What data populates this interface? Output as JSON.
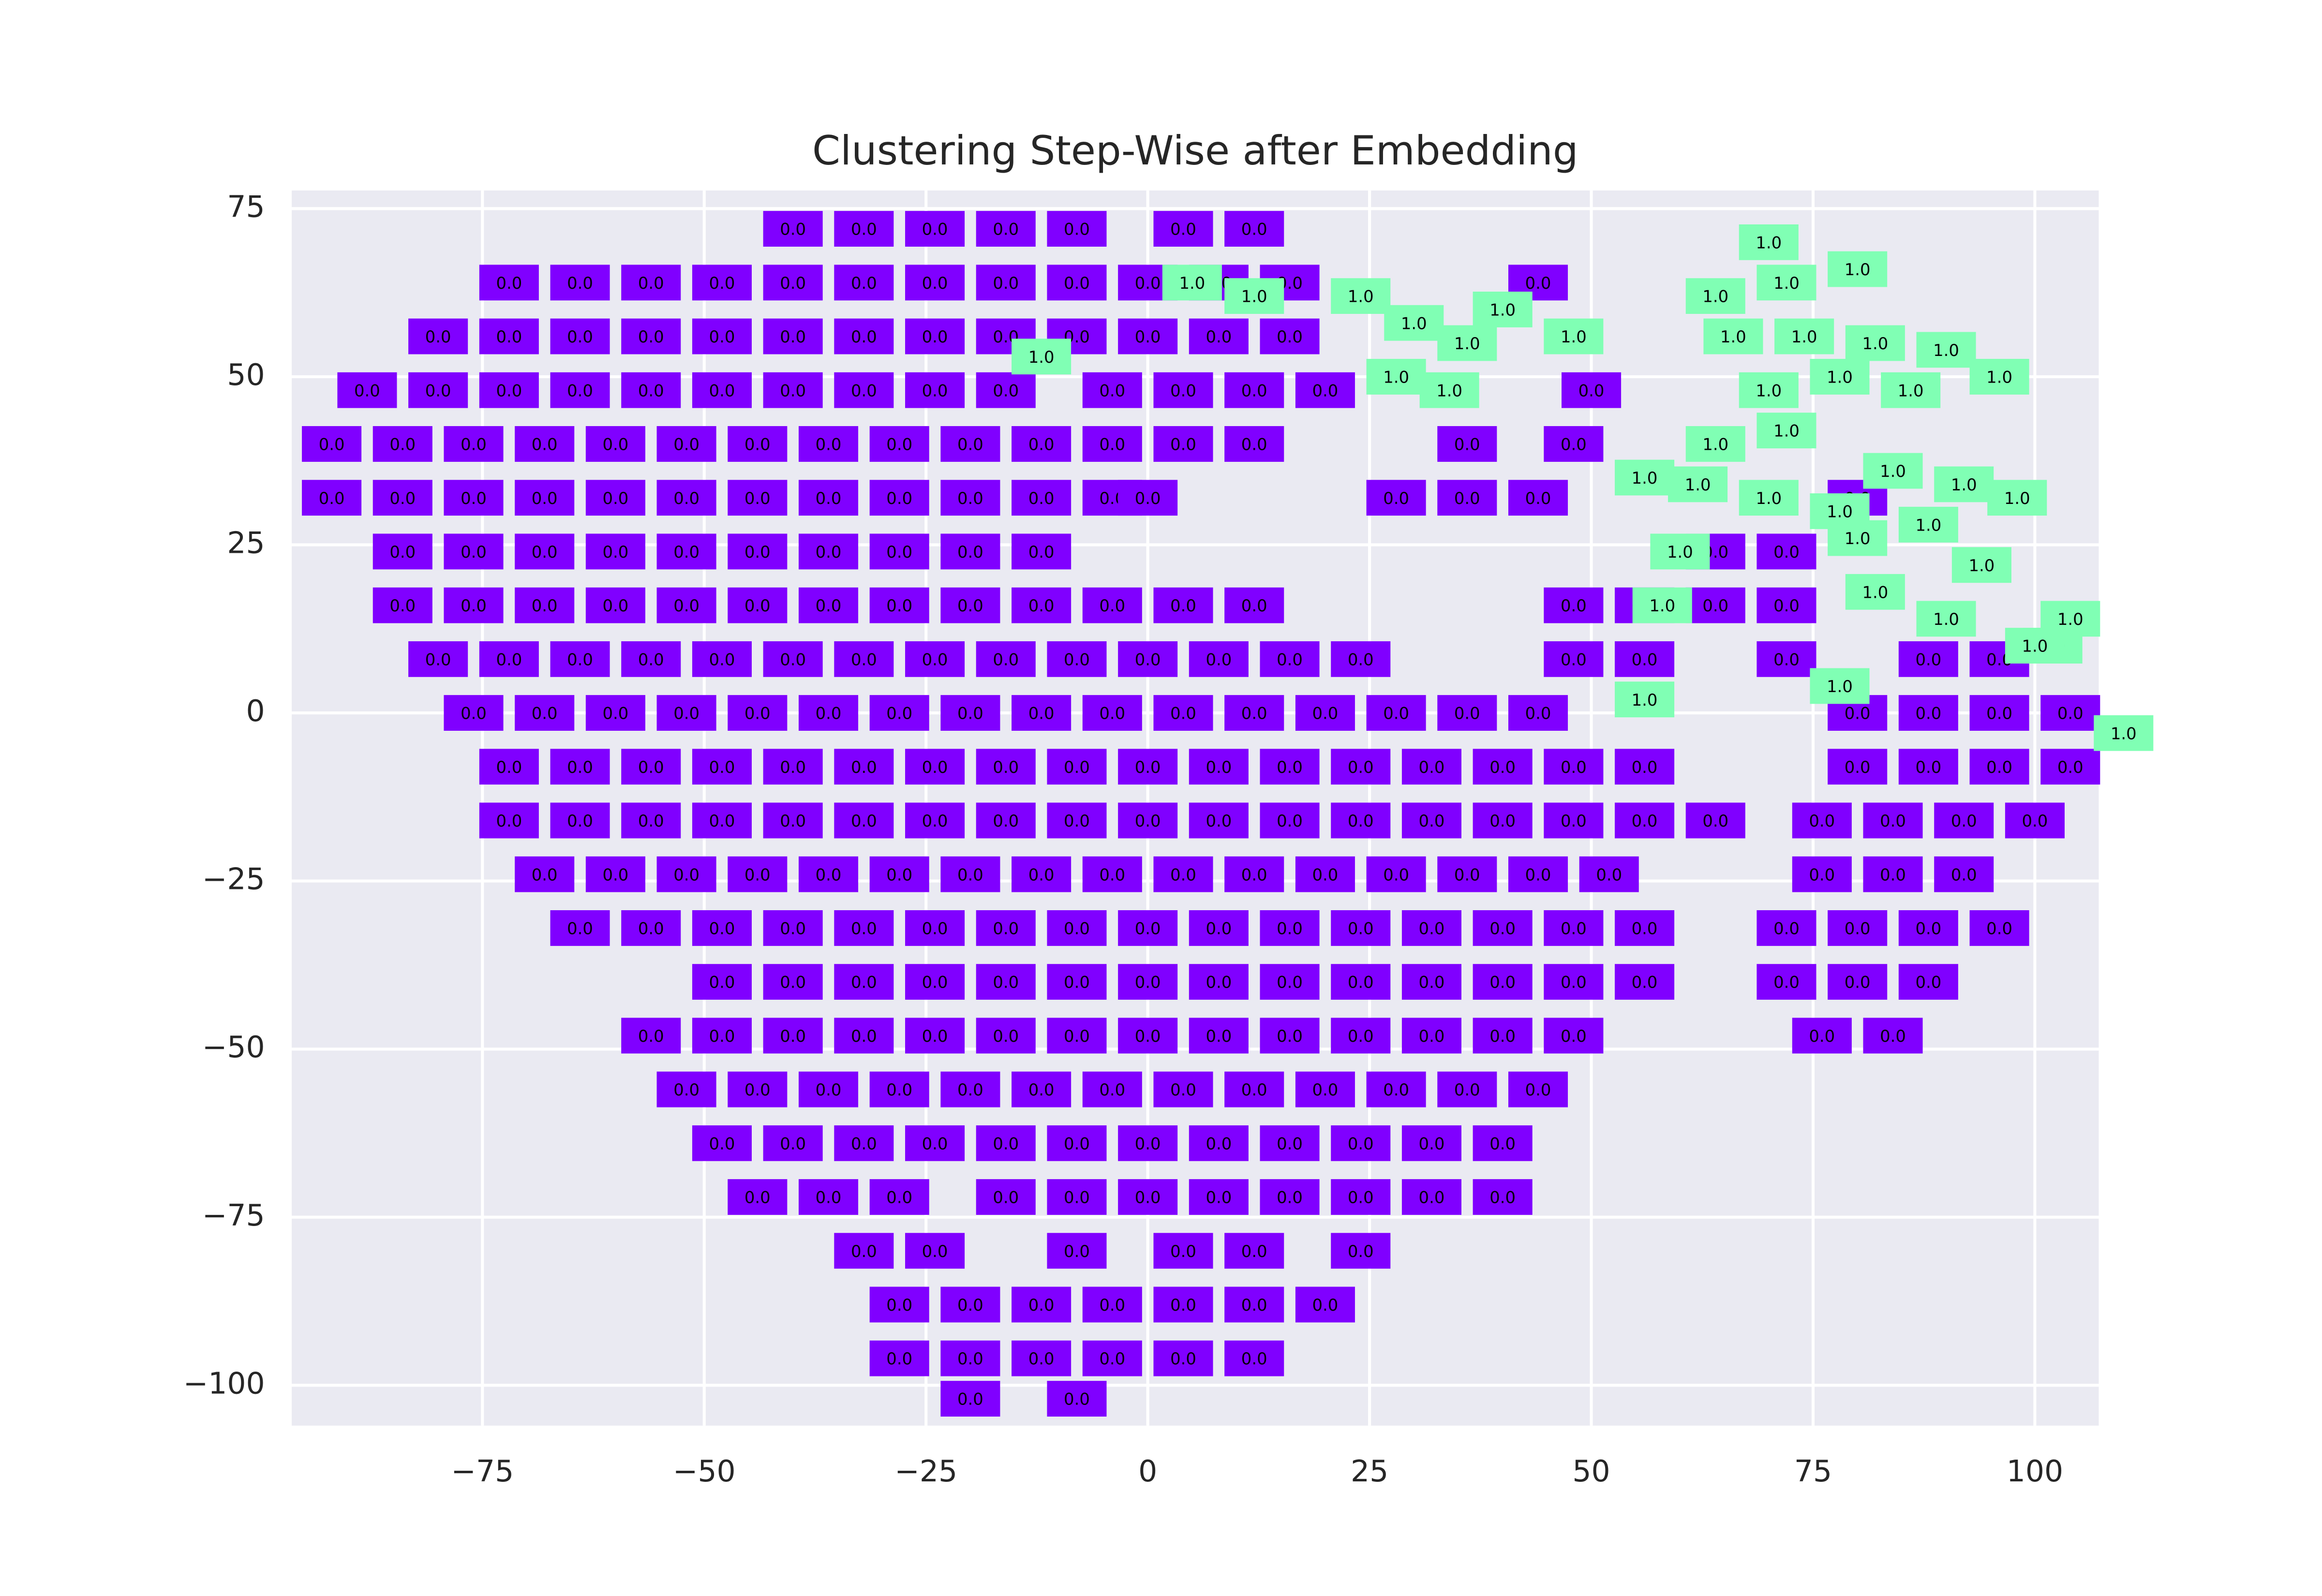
{
  "chart_data": {
    "type": "scatter",
    "title": "Clustering Step-Wise after Embedding",
    "xlim": [
      -96.5,
      107.2
    ],
    "ylim": [
      -106,
      77.7
    ],
    "xticks": [
      {
        "value": -75,
        "label": "−75"
      },
      {
        "value": -50,
        "label": "−50"
      },
      {
        "value": -25,
        "label": "−25"
      },
      0,
      25,
      50,
      75,
      100
    ],
    "yticks": [
      {
        "value": -100,
        "label": "−100"
      },
      {
        "value": -75,
        "label": "−75"
      },
      {
        "value": -50,
        "label": "−50"
      },
      {
        "value": -25,
        "label": "−25"
      },
      0,
      25,
      50,
      75
    ],
    "grid": true,
    "legend": false,
    "series": [
      {
        "name": "0.0",
        "color": "#8000ff",
        "x": [
          -40,
          -32,
          -24,
          -16,
          -8,
          4,
          12,
          -72,
          -64,
          -56,
          -48,
          -40,
          -32,
          -24,
          -16,
          -8,
          0,
          8,
          16,
          44,
          -80,
          -72,
          -64,
          -56,
          -48,
          -40,
          -32,
          -24,
          -16,
          -8,
          0,
          8,
          16,
          -88,
          -80,
          -72,
          -64,
          -56,
          -48,
          -40,
          -32,
          -24,
          -16,
          -4,
          4,
          12,
          20,
          50,
          -92,
          -84,
          -76,
          -68,
          -60,
          -52,
          -44,
          -36,
          -28,
          -20,
          -12,
          -4,
          4,
          12,
          36,
          48,
          -92,
          -84,
          -76,
          -68,
          -60,
          -52,
          -44,
          -36,
          -28,
          -20,
          -12,
          -4,
          0,
          28,
          36,
          44,
          80,
          -84,
          -76,
          -68,
          -60,
          -52,
          -44,
          -36,
          -28,
          -20,
          -12,
          64,
          72,
          -84,
          -76,
          -68,
          -60,
          -52,
          -44,
          -36,
          -28,
          -20,
          -12,
          -4,
          4,
          12,
          48,
          56,
          64,
          72,
          -80,
          -72,
          -64,
          -56,
          -48,
          -40,
          -32,
          -24,
          -16,
          -8,
          0,
          8,
          16,
          24,
          48,
          56,
          72,
          88,
          96,
          -76,
          -68,
          -60,
          -52,
          -44,
          -36,
          -28,
          -20,
          -12,
          -4,
          4,
          12,
          20,
          28,
          36,
          44,
          80,
          88,
          96,
          104,
          -72,
          -64,
          -56,
          -48,
          -40,
          -32,
          -24,
          -16,
          -8,
          0,
          8,
          16,
          24,
          32,
          40,
          48,
          56,
          80,
          88,
          96,
          104,
          -72,
          -64,
          -56,
          -48,
          -40,
          -32,
          -24,
          -16,
          -8,
          0,
          8,
          16,
          24,
          32,
          40,
          48,
          56,
          64,
          76,
          84,
          92,
          100,
          -68,
          -60,
          -52,
          -44,
          -36,
          -28,
          -20,
          -12,
          -4,
          4,
          12,
          20,
          28,
          36,
          44,
          52,
          76,
          84,
          92,
          -64,
          -56,
          -48,
          -40,
          -32,
          -24,
          -16,
          -8,
          0,
          8,
          16,
          24,
          32,
          40,
          48,
          56,
          72,
          80,
          88,
          96,
          -48,
          -40,
          -32,
          -24,
          -16,
          -8,
          0,
          8,
          16,
          24,
          32,
          40,
          48,
          56,
          72,
          80,
          88,
          -56,
          -48,
          -40,
          -32,
          -24,
          -16,
          -8,
          0,
          8,
          16,
          24,
          32,
          40,
          48,
          76,
          84,
          -52,
          -44,
          -36,
          -28,
          -20,
          -12,
          -4,
          4,
          12,
          20,
          28,
          36,
          44,
          -48,
          -40,
          -32,
          -24,
          -16,
          -8,
          0,
          8,
          16,
          24,
          32,
          40,
          -44,
          -36,
          -28,
          -16,
          -8,
          0,
          8,
          16,
          24,
          32,
          40,
          -32,
          -24,
          -8,
          4,
          12,
          24,
          -28,
          -20,
          -12,
          -4,
          4,
          12,
          20,
          -28,
          -20,
          -12,
          -4,
          4,
          12,
          -20,
          -8
        ],
        "values": [
          72,
          72,
          72,
          72,
          72,
          72,
          72,
          64,
          64,
          64,
          64,
          64,
          64,
          64,
          64,
          64,
          64,
          64,
          64,
          64,
          56,
          56,
          56,
          56,
          56,
          56,
          56,
          56,
          56,
          56,
          56,
          56,
          56,
          48,
          48,
          48,
          48,
          48,
          48,
          48,
          48,
          48,
          48,
          48,
          48,
          48,
          48,
          48,
          40,
          40,
          40,
          40,
          40,
          40,
          40,
          40,
          40,
          40,
          40,
          40,
          40,
          40,
          40,
          40,
          32,
          32,
          32,
          32,
          32,
          32,
          32,
          32,
          32,
          32,
          32,
          32,
          32,
          32,
          32,
          32,
          32,
          24,
          24,
          24,
          24,
          24,
          24,
          24,
          24,
          24,
          24,
          24,
          24,
          16,
          16,
          16,
          16,
          16,
          16,
          16,
          16,
          16,
          16,
          16,
          16,
          16,
          16,
          16,
          16,
          16,
          8,
          8,
          8,
          8,
          8,
          8,
          8,
          8,
          8,
          8,
          8,
          8,
          8,
          8,
          8,
          8,
          8,
          8,
          8,
          0,
          0,
          0,
          0,
          0,
          0,
          0,
          0,
          0,
          0,
          0,
          0,
          0,
          0,
          0,
          0,
          0,
          0,
          0,
          0,
          -8,
          -8,
          -8,
          -8,
          -8,
          -8,
          -8,
          -8,
          -8,
          -8,
          -8,
          -8,
          -8,
          -8,
          -8,
          -8,
          -8,
          -8,
          -8,
          -8,
          -8,
          -16,
          -16,
          -16,
          -16,
          -16,
          -16,
          -16,
          -16,
          -16,
          -16,
          -16,
          -16,
          -16,
          -16,
          -16,
          -16,
          -16,
          -16,
          -16,
          -16,
          -16,
          -16,
          -24,
          -24,
          -24,
          -24,
          -24,
          -24,
          -24,
          -24,
          -24,
          -24,
          -24,
          -24,
          -24,
          -24,
          -24,
          -24,
          -24,
          -24,
          -24,
          -32,
          -32,
          -32,
          -32,
          -32,
          -32,
          -32,
          -32,
          -32,
          -32,
          -32,
          -32,
          -32,
          -32,
          -32,
          -32,
          -32,
          -32,
          -32,
          -32,
          -40,
          -40,
          -40,
          -40,
          -40,
          -40,
          -40,
          -40,
          -40,
          -40,
          -40,
          -40,
          -40,
          -40,
          -40,
          -40,
          -40,
          -48,
          -48,
          -48,
          -48,
          -48,
          -48,
          -48,
          -48,
          -48,
          -48,
          -48,
          -48,
          -48,
          -48,
          -48,
          -48,
          -56,
          -56,
          -56,
          -56,
          -56,
          -56,
          -56,
          -56,
          -56,
          -56,
          -56,
          -56,
          -56,
          -64,
          -64,
          -64,
          -64,
          -64,
          -64,
          -64,
          -64,
          -64,
          -64,
          -64,
          -64,
          -72,
          -72,
          -72,
          -72,
          -72,
          -72,
          -72,
          -72,
          -72,
          -72,
          -72,
          -80,
          -80,
          -80,
          -80,
          -80,
          -80,
          -88,
          -88,
          -88,
          -88,
          -88,
          -88,
          -88,
          -96,
          -96,
          -96,
          -96,
          -96,
          -96,
          -102,
          -102
        ]
      },
      {
        "name": "1.0",
        "color": "#80ffb4",
        "x": [
          -12,
          5,
          12,
          24,
          30,
          36,
          40,
          28,
          34,
          48,
          64,
          70,
          72,
          80,
          66,
          74,
          82,
          90,
          96,
          70,
          78,
          86,
          64,
          72,
          56,
          62,
          70,
          78,
          84,
          92,
          98,
          88,
          80,
          94,
          60,
          58,
          82,
          90,
          104,
          102,
          78,
          110,
          56,
          100
        ],
        "values": [
          53,
          64,
          62,
          62,
          58,
          55,
          60,
          50,
          48,
          56,
          62,
          70,
          64,
          66,
          56,
          56,
          55,
          54,
          50,
          48,
          50,
          48,
          40,
          42,
          35,
          34,
          32,
          30,
          36,
          34,
          32,
          28,
          26,
          22,
          24,
          16,
          18,
          14,
          14,
          10,
          4,
          -3,
          2,
          10
        ]
      }
    ]
  }
}
